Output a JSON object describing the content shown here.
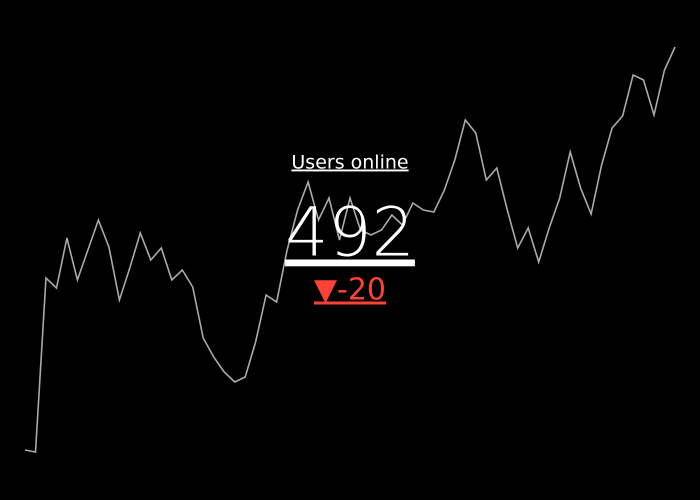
{
  "chart_data": {
    "type": "indicator",
    "title": "Users online",
    "value": 492,
    "delta": {
      "value": -20,
      "label": "▼-20"
    },
    "delta_color": "#ff4136",
    "sparkline": {
      "color": "#aaaaaa",
      "values": [
        10,
        8,
        182,
        172,
        222,
        180,
        210,
        240,
        213,
        160,
        192,
        227,
        200,
        212,
        180,
        190,
        173,
        122,
        103,
        88,
        78,
        83,
        118,
        165,
        158,
        210,
        250,
        278,
        240,
        262,
        220,
        262,
        230,
        225,
        230,
        245,
        235,
        257,
        250,
        248,
        270,
        300,
        340,
        327,
        280,
        292,
        250,
        212,
        232,
        198,
        232,
        262,
        308,
        272,
        246,
        295,
        332,
        344,
        385,
        380,
        345,
        390,
        413
      ]
    }
  }
}
